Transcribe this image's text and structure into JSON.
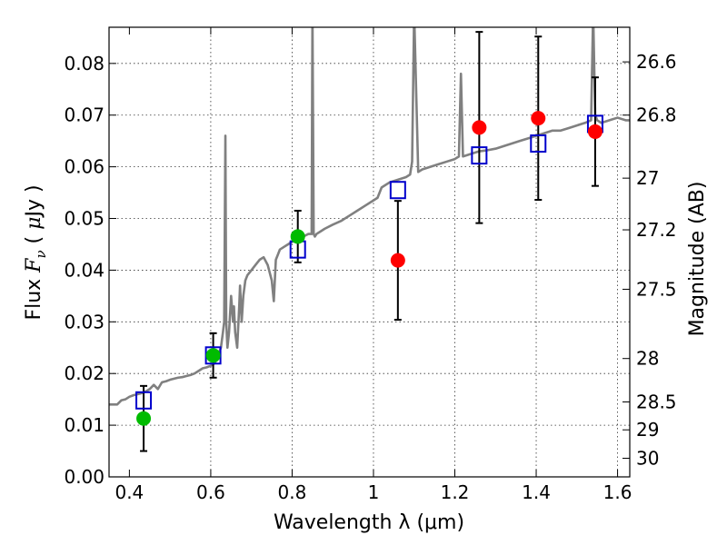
{
  "chart_data": {
    "type": "scatter",
    "title": "",
    "xlabel": "Wavelength  λ (μm)",
    "ylabel": "Flux  F_ν  ( μJy )",
    "ylabel_parts": {
      "prefix": "Flux  ",
      "var": "F",
      "sub": "ν",
      "open": "  ( ",
      "mu": "μ",
      "unit": "Jy )"
    },
    "y2label": "Magnitude (AB)",
    "xlim": [
      0.35,
      1.63
    ],
    "ylim": [
      0.0,
      0.087
    ],
    "grid": true,
    "x_ticks": [
      0.4,
      0.6,
      0.8,
      1.0,
      1.2,
      1.4,
      1.6
    ],
    "x_tick_labels": [
      "0.4",
      "0.6",
      "0.8",
      "1",
      "1.2",
      "1.4",
      "1.6"
    ],
    "y_ticks": [
      0.0,
      0.01,
      0.02,
      0.03,
      0.04,
      0.05,
      0.06,
      0.07,
      0.08
    ],
    "y_tick_labels": [
      "0.00",
      "0.01",
      "0.02",
      "0.03",
      "0.04",
      "0.05",
      "0.06",
      "0.07",
      "0.08"
    ],
    "mag_ticks": [
      {
        "label": "26.6",
        "flux": 0.0803
      },
      {
        "label": "26.8",
        "flux": 0.07
      },
      {
        "label": "27",
        "flux": 0.0578
      },
      {
        "label": "27.2",
        "flux": 0.0478
      },
      {
        "label": "27.5",
        "flux": 0.0363
      },
      {
        "label": "28",
        "flux": 0.0229
      },
      {
        "label": "28.5",
        "flux": 0.0145
      },
      {
        "label": "29",
        "flux": 0.0091
      },
      {
        "label": "30",
        "flux": 0.0036
      }
    ],
    "colors": {
      "model": "#808080",
      "model_photometry": "#0000cc",
      "observed_detection": "#ff0000",
      "observed_optical": "#00bb00",
      "errorbar": "#000000"
    },
    "model_spectrum": {
      "x": [
        0.35,
        0.37,
        0.38,
        0.39,
        0.4,
        0.41,
        0.42,
        0.43,
        0.44,
        0.45,
        0.46,
        0.47,
        0.48,
        0.49,
        0.5,
        0.51,
        0.52,
        0.53,
        0.54,
        0.55,
        0.56,
        0.57,
        0.58,
        0.59,
        0.6,
        0.61,
        0.615,
        0.62,
        0.625,
        0.63,
        0.633,
        0.636,
        0.638,
        0.641,
        0.645,
        0.65,
        0.655,
        0.657,
        0.66,
        0.665,
        0.67,
        0.672,
        0.676,
        0.68,
        0.685,
        0.69,
        0.7,
        0.71,
        0.72,
        0.73,
        0.74,
        0.75,
        0.755,
        0.76,
        0.765,
        0.77,
        0.78,
        0.79,
        0.8,
        0.81,
        0.82,
        0.83,
        0.84,
        0.848,
        0.85,
        0.853,
        0.856,
        0.86,
        0.87,
        0.88,
        0.9,
        0.92,
        0.94,
        0.96,
        0.98,
        1.0,
        1.01,
        1.02,
        1.04,
        1.06,
        1.08,
        1.09,
        1.095,
        1.1,
        1.11,
        1.12,
        1.14,
        1.16,
        1.18,
        1.2,
        1.21,
        1.215,
        1.22,
        1.24,
        1.26,
        1.28,
        1.3,
        1.32,
        1.34,
        1.36,
        1.38,
        1.4,
        1.42,
        1.44,
        1.46,
        1.48,
        1.5,
        1.52,
        1.535,
        1.54,
        1.545,
        1.55,
        1.56,
        1.58,
        1.6,
        1.62,
        1.63
      ],
      "y": [
        0.014,
        0.014,
        0.0148,
        0.015,
        0.0155,
        0.0158,
        0.016,
        0.0162,
        0.0165,
        0.017,
        0.0178,
        0.017,
        0.0183,
        0.0185,
        0.0188,
        0.019,
        0.0192,
        0.0193,
        0.0195,
        0.0197,
        0.02,
        0.0205,
        0.021,
        0.0212,
        0.0215,
        0.022,
        0.023,
        0.024,
        0.025,
        0.028,
        0.03,
        0.066,
        0.03,
        0.025,
        0.028,
        0.035,
        0.03,
        0.033,
        0.028,
        0.025,
        0.033,
        0.037,
        0.03,
        0.035,
        0.038,
        0.039,
        0.04,
        0.041,
        0.042,
        0.0425,
        0.041,
        0.038,
        0.034,
        0.042,
        0.043,
        0.044,
        0.0445,
        0.045,
        0.0455,
        0.0458,
        0.0462,
        0.0466,
        0.047,
        0.047,
        0.09,
        0.047,
        0.0465,
        0.047,
        0.0475,
        0.048,
        0.0488,
        0.0495,
        0.0505,
        0.0515,
        0.0525,
        0.0535,
        0.054,
        0.056,
        0.057,
        0.0575,
        0.058,
        0.0585,
        0.061,
        0.09,
        0.059,
        0.0595,
        0.06,
        0.0605,
        0.061,
        0.0615,
        0.062,
        0.078,
        0.062,
        0.0625,
        0.063,
        0.0632,
        0.0635,
        0.064,
        0.0645,
        0.065,
        0.0655,
        0.066,
        0.0665,
        0.067,
        0.067,
        0.0675,
        0.068,
        0.0685,
        0.069,
        0.09,
        0.07,
        0.069,
        0.0685,
        0.069,
        0.0695,
        0.069,
        0.069
      ]
    },
    "model_photometry": {
      "x": [
        0.435,
        0.606,
        0.814,
        1.06,
        1.26,
        1.405,
        1.545
      ],
      "y": [
        0.0148,
        0.0235,
        0.044,
        0.0555,
        0.0622,
        0.0645,
        0.0683
      ]
    },
    "observed_optical": {
      "x": [
        0.435,
        0.606,
        0.814
      ],
      "y": [
        0.0113,
        0.0235,
        0.0465
      ],
      "yerr": [
        0.0063,
        0.0043,
        0.005
      ]
    },
    "observed_detection": {
      "x": [
        1.06,
        1.26,
        1.405,
        1.545
      ],
      "y": [
        0.0419,
        0.0676,
        0.0694,
        0.0668
      ],
      "yerr": [
        0.0115,
        0.0185,
        0.0158,
        0.0105
      ]
    }
  }
}
